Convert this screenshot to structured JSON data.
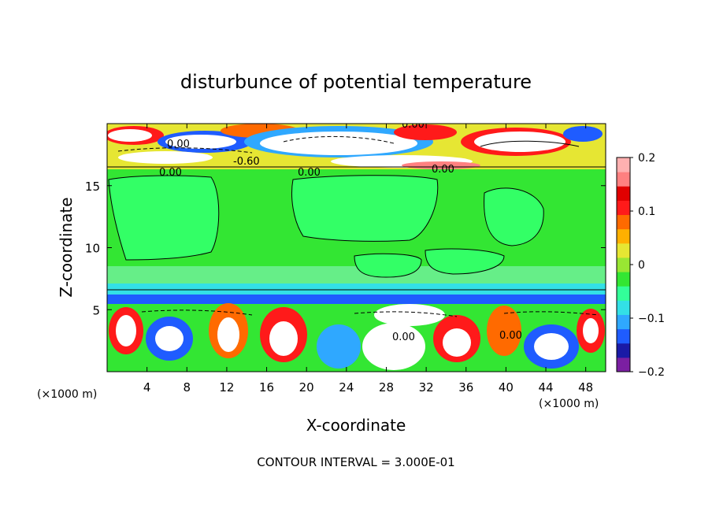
{
  "chart_data": {
    "type": "heatmap",
    "title": "disturbunce of potential temperature",
    "xlabel": "X-coordinate",
    "ylabel": "Z-coordinate",
    "x_unit_label_left": "(×1000 m)",
    "x_unit_label_right": "(×1000 m)",
    "xlim": [
      0,
      50
    ],
    "ylim": [
      0,
      20
    ],
    "x_ticks": [
      "4",
      "8",
      "12",
      "16",
      "20",
      "24",
      "28",
      "32",
      "36",
      "40",
      "44",
      "48"
    ],
    "y_ticks": [
      "5",
      "10",
      "15"
    ],
    "colorbar": {
      "range": [
        -0.2,
        0.2
      ],
      "tick_labels": [
        "0.2",
        "0.1",
        "0",
        "−0.1",
        "−0.2"
      ],
      "colors": [
        "#7b1fa2",
        "#1a1aa6",
        "#1f5cff",
        "#2fa8ff",
        "#33e0e6",
        "#33ff99",
        "#33e633",
        "#99e633",
        "#e6e633",
        "#ffb000",
        "#ff6a00",
        "#ff1a1a",
        "#e00000",
        "#ff8080",
        "#ffb0b0"
      ]
    },
    "contour_labels": [
      "0.00",
      "0.00",
      "-0.60",
      "0.00",
      "0.00",
      "0.00",
      "0.00",
      "0.00"
    ],
    "contour_interval_text": "CONTOUR INTERVAL = 3.000E-01"
  }
}
